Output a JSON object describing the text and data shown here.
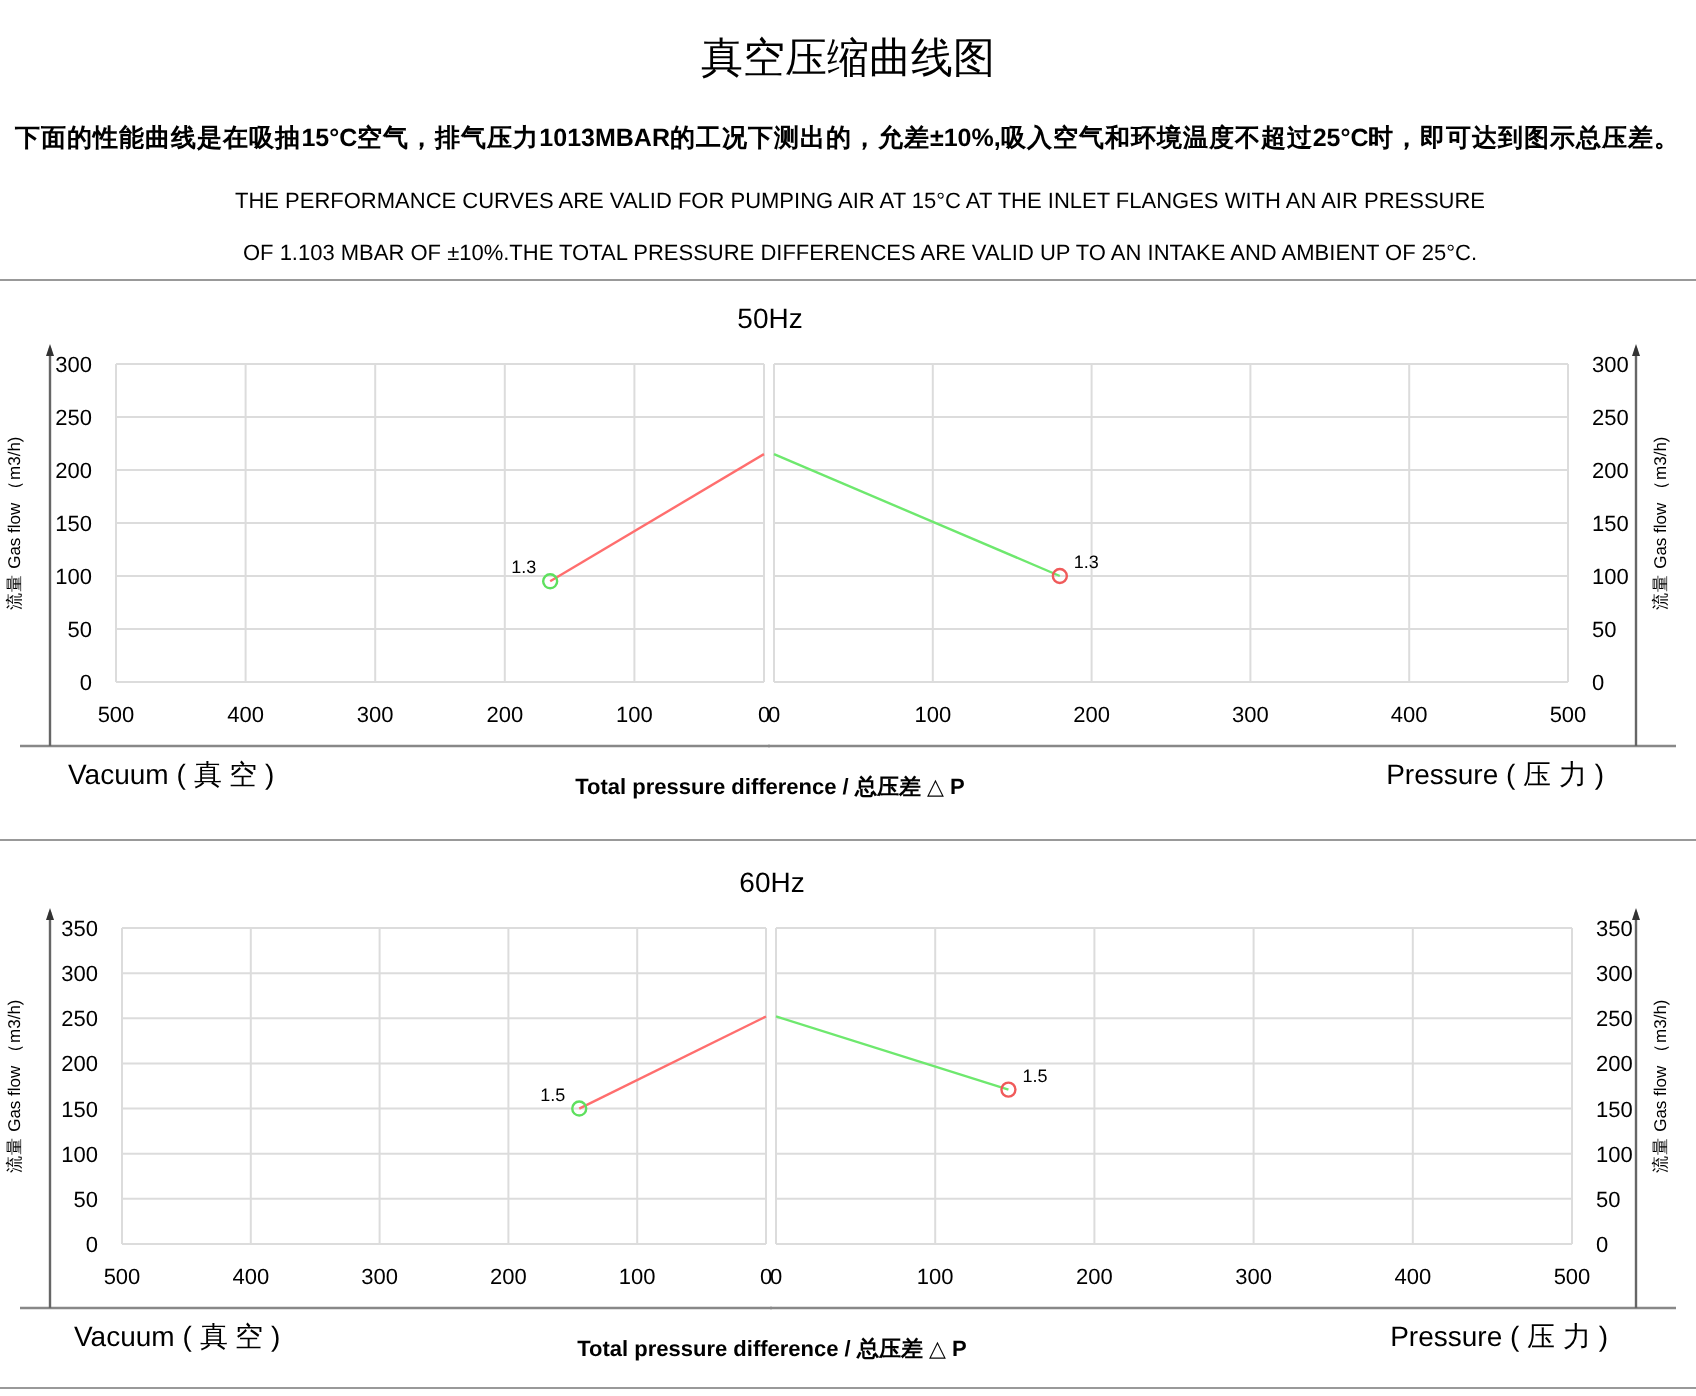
{
  "chart_data": [
    {
      "type": "other",
      "title": "真空压缩曲线图",
      "subtitle": "下面的性能曲线是在吸抽15°C空气，排气压力1013MBAR的工况下测出的，允差±10%,吸入空气和环境温度不超过25°C时，即可达到图示总压差。",
      "annotations": [
        "THE PERFORMANCE CURVES ARE VALID FOR PUMPING AIR AT 15°C AT THE INLET FLANGES WITH AN AIR PRESSURE OF 1.103 MBAR OF ±10%.THE TOTAL PRESSURE DIFFERENCES ARE VALID UP TO AN INTAKE AND AMBIENT OF 25°C."
      ]
    },
    {
      "type": "line",
      "title": "50Hz",
      "xlabel": "Vacuum ( 真 空 )",
      "ylabel": "流量 Gas flow （m3/h)",
      "xlim": [
        500,
        0
      ],
      "xticks": [
        500,
        400,
        300,
        200,
        100,
        0
      ],
      "ylim": [
        0,
        300
      ],
      "yticks": [
        0,
        50,
        100,
        150,
        200,
        250,
        300
      ],
      "grid": true,
      "series": [
        {
          "type": "line",
          "color": "#ff6e6e",
          "x": [
            165,
            0
          ],
          "values": [
            95,
            215
          ],
          "line_style": "solid"
        },
        {
          "type": "scatter",
          "color": "#5ee05e",
          "x": [
            165
          ],
          "values": [
            95
          ],
          "marker": "circle"
        }
      ],
      "annotations": [
        "Total pressure difference / 总压差 △ P",
        {
          "text": "1.3",
          "x": 165,
          "y": 95
        }
      ]
    },
    {
      "type": "line",
      "xlabel": "Pressure ( 压 力 )",
      "ylabel": "流量 Gas flow （m3/h)",
      "xlim": [
        0,
        500
      ],
      "xticks": [
        0,
        100,
        200,
        300,
        400,
        500
      ],
      "ylim": [
        0,
        300
      ],
      "yticks": [
        0,
        50,
        100,
        150,
        200,
        250,
        300
      ],
      "grid": true,
      "series": [
        {
          "type": "line",
          "color": "#6ee86e",
          "x": [
            0,
            180
          ],
          "values": [
            215,
            100
          ],
          "line_style": "solid"
        },
        {
          "type": "scatter",
          "color": "#f05a5a",
          "x": [
            180
          ],
          "values": [
            100
          ],
          "marker": "circle"
        }
      ],
      "annotations": [
        {
          "text": "1.3",
          "x": 180,
          "y": 100
        }
      ]
    },
    {
      "type": "line",
      "title": "60Hz",
      "xlabel": "Vacuum ( 真 空 )",
      "ylabel": "流量 Gas flow （m3/h)",
      "xlim": [
        500,
        0
      ],
      "xticks": [
        500,
        400,
        300,
        200,
        100,
        0
      ],
      "ylim": [
        0,
        350
      ],
      "yticks": [
        0,
        50,
        100,
        150,
        200,
        250,
        300,
        350
      ],
      "grid": true,
      "series": [
        {
          "type": "line",
          "color": "#ff6e6e",
          "x": [
            145,
            0
          ],
          "values": [
            150,
            252
          ],
          "line_style": "solid"
        },
        {
          "type": "scatter",
          "color": "#5ee05e",
          "x": [
            145
          ],
          "values": [
            150
          ],
          "marker": "circle"
        }
      ],
      "annotations": [
        "Total pressure difference / 总压差 △ P",
        {
          "text": "1.5",
          "x": 145,
          "y": 150
        }
      ]
    },
    {
      "type": "line",
      "xlabel": "Pressure ( 压 力 )",
      "ylabel": "流量 Gas flow （m3/h)",
      "xlim": [
        0,
        500
      ],
      "xticks": [
        0,
        100,
        200,
        300,
        400,
        500
      ],
      "ylim": [
        0,
        350
      ],
      "yticks": [
        0,
        50,
        100,
        150,
        200,
        250,
        300,
        350
      ],
      "grid": true,
      "series": [
        {
          "type": "line",
          "color": "#6ee86e",
          "x": [
            0,
            146
          ],
          "values": [
            252,
            171
          ],
          "line_style": "solid"
        },
        {
          "type": "scatter",
          "color": "#f05a5a",
          "x": [
            146
          ],
          "values": [
            171
          ],
          "marker": "circle"
        }
      ],
      "annotations": [
        {
          "text": "1.5",
          "x": 146,
          "y": 171
        }
      ]
    }
  ]
}
